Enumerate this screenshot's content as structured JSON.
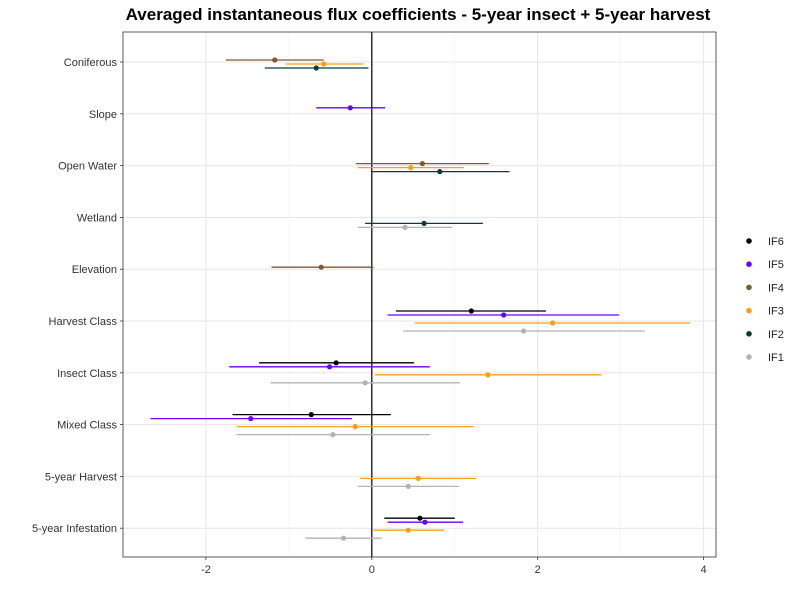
{
  "chart_data": {
    "type": "scatter",
    "title": "Averaged instantaneous flux coefficients - 5-year insect + 5-year harvest",
    "xlabel": "",
    "ylabel": "",
    "xlim": [
      -3.0,
      4.15
    ],
    "x_ticks": [
      -2,
      0,
      2,
      4
    ],
    "x_tick_labels": [
      "-2",
      "0",
      "2",
      "4"
    ],
    "grid": true,
    "legend_position": "right",
    "categories": [
      "Coniferous",
      "Slope",
      "Open Water",
      "Wetland",
      "Elevation",
      "Harvest Class",
      "Insect Class",
      "Mixed Class",
      "5-year Harvest",
      "5-year Infestation"
    ],
    "series": [
      {
        "name": "IF6",
        "color": "#000000",
        "values": [
          {
            "category": "Harvest Class",
            "est": 1.2,
            "lo": 0.29,
            "hi": 2.1
          },
          {
            "category": "Insect Class",
            "est": -0.43,
            "lo": -1.36,
            "hi": 0.51
          },
          {
            "category": "Mixed Class",
            "est": -0.73,
            "lo": -1.68,
            "hi": 0.23
          },
          {
            "category": "5-year Infestation",
            "est": 0.58,
            "lo": 0.15,
            "hi": 1.0
          }
        ]
      },
      {
        "name": "IF5",
        "color": "#6a00ff",
        "values": [
          {
            "category": "Slope",
            "est": -0.26,
            "lo": -0.67,
            "hi": 0.16
          },
          {
            "category": "Harvest Class",
            "est": 1.59,
            "lo": 0.19,
            "hi": 2.98
          },
          {
            "category": "Insect Class",
            "est": -0.51,
            "lo": -1.72,
            "hi": 0.7
          },
          {
            "category": "Mixed Class",
            "est": -1.46,
            "lo": -2.67,
            "hi": -0.24
          },
          {
            "category": "5-year Infestation",
            "est": 0.64,
            "lo": 0.19,
            "hi": 1.1
          }
        ]
      },
      {
        "name": "IF4",
        "color": "#7f5a2e",
        "values": [
          {
            "category": "Coniferous",
            "est": -1.17,
            "lo": -1.76,
            "hi": -0.58
          },
          {
            "category": "Open Water",
            "est": 0.61,
            "lo": -0.19,
            "hi": 1.41
          },
          {
            "category": "Elevation",
            "est": -0.61,
            "lo": -1.21,
            "hi": 0.02
          }
        ]
      },
      {
        "name": "IF3",
        "color": "#f0a21a",
        "values": [
          {
            "category": "Coniferous",
            "est": -0.58,
            "lo": -1.04,
            "hi": -0.1
          },
          {
            "category": "Open Water",
            "est": 0.47,
            "lo": -0.17,
            "hi": 1.11
          },
          {
            "category": "Harvest Class",
            "est": 2.18,
            "lo": 0.52,
            "hi": 3.84
          },
          {
            "category": "Insect Class",
            "est": 1.4,
            "lo": 0.04,
            "hi": 2.77
          },
          {
            "category": "Mixed Class",
            "est": -0.2,
            "lo": -1.63,
            "hi": 1.23
          },
          {
            "category": "5-year Harvest",
            "est": 0.56,
            "lo": -0.14,
            "hi": 1.26
          },
          {
            "category": "5-year Infestation",
            "est": 0.44,
            "lo": 0.02,
            "hi": 0.87
          }
        ]
      },
      {
        "name": "IF2",
        "color": "#0d3b3b",
        "values": [
          {
            "category": "Coniferous",
            "est": -0.67,
            "lo": -1.29,
            "hi": -0.04
          },
          {
            "category": "Open Water",
            "est": 0.82,
            "lo": -0.01,
            "hi": 1.66
          },
          {
            "category": "Wetland",
            "est": 0.63,
            "lo": -0.08,
            "hi": 1.34
          }
        ]
      },
      {
        "name": "IF1",
        "color": "#b3b3b3",
        "values": [
          {
            "category": "Wetland",
            "est": 0.4,
            "lo": -0.17,
            "hi": 0.97
          },
          {
            "category": "Harvest Class",
            "est": 1.83,
            "lo": 0.38,
            "hi": 3.29
          },
          {
            "category": "Insect Class",
            "est": -0.08,
            "lo": -1.22,
            "hi": 1.06
          },
          {
            "category": "Mixed Class",
            "est": -0.47,
            "lo": -1.63,
            "hi": 0.7
          },
          {
            "category": "5-year Harvest",
            "est": 0.44,
            "lo": -0.17,
            "hi": 1.05
          },
          {
            "category": "5-year Infestation",
            "est": -0.34,
            "lo": -0.8,
            "hi": 0.12
          }
        ]
      }
    ],
    "legend_order": [
      "IF6",
      "IF5",
      "IF4",
      "IF3",
      "IF2",
      "IF1"
    ],
    "reference_line_x": 0
  }
}
